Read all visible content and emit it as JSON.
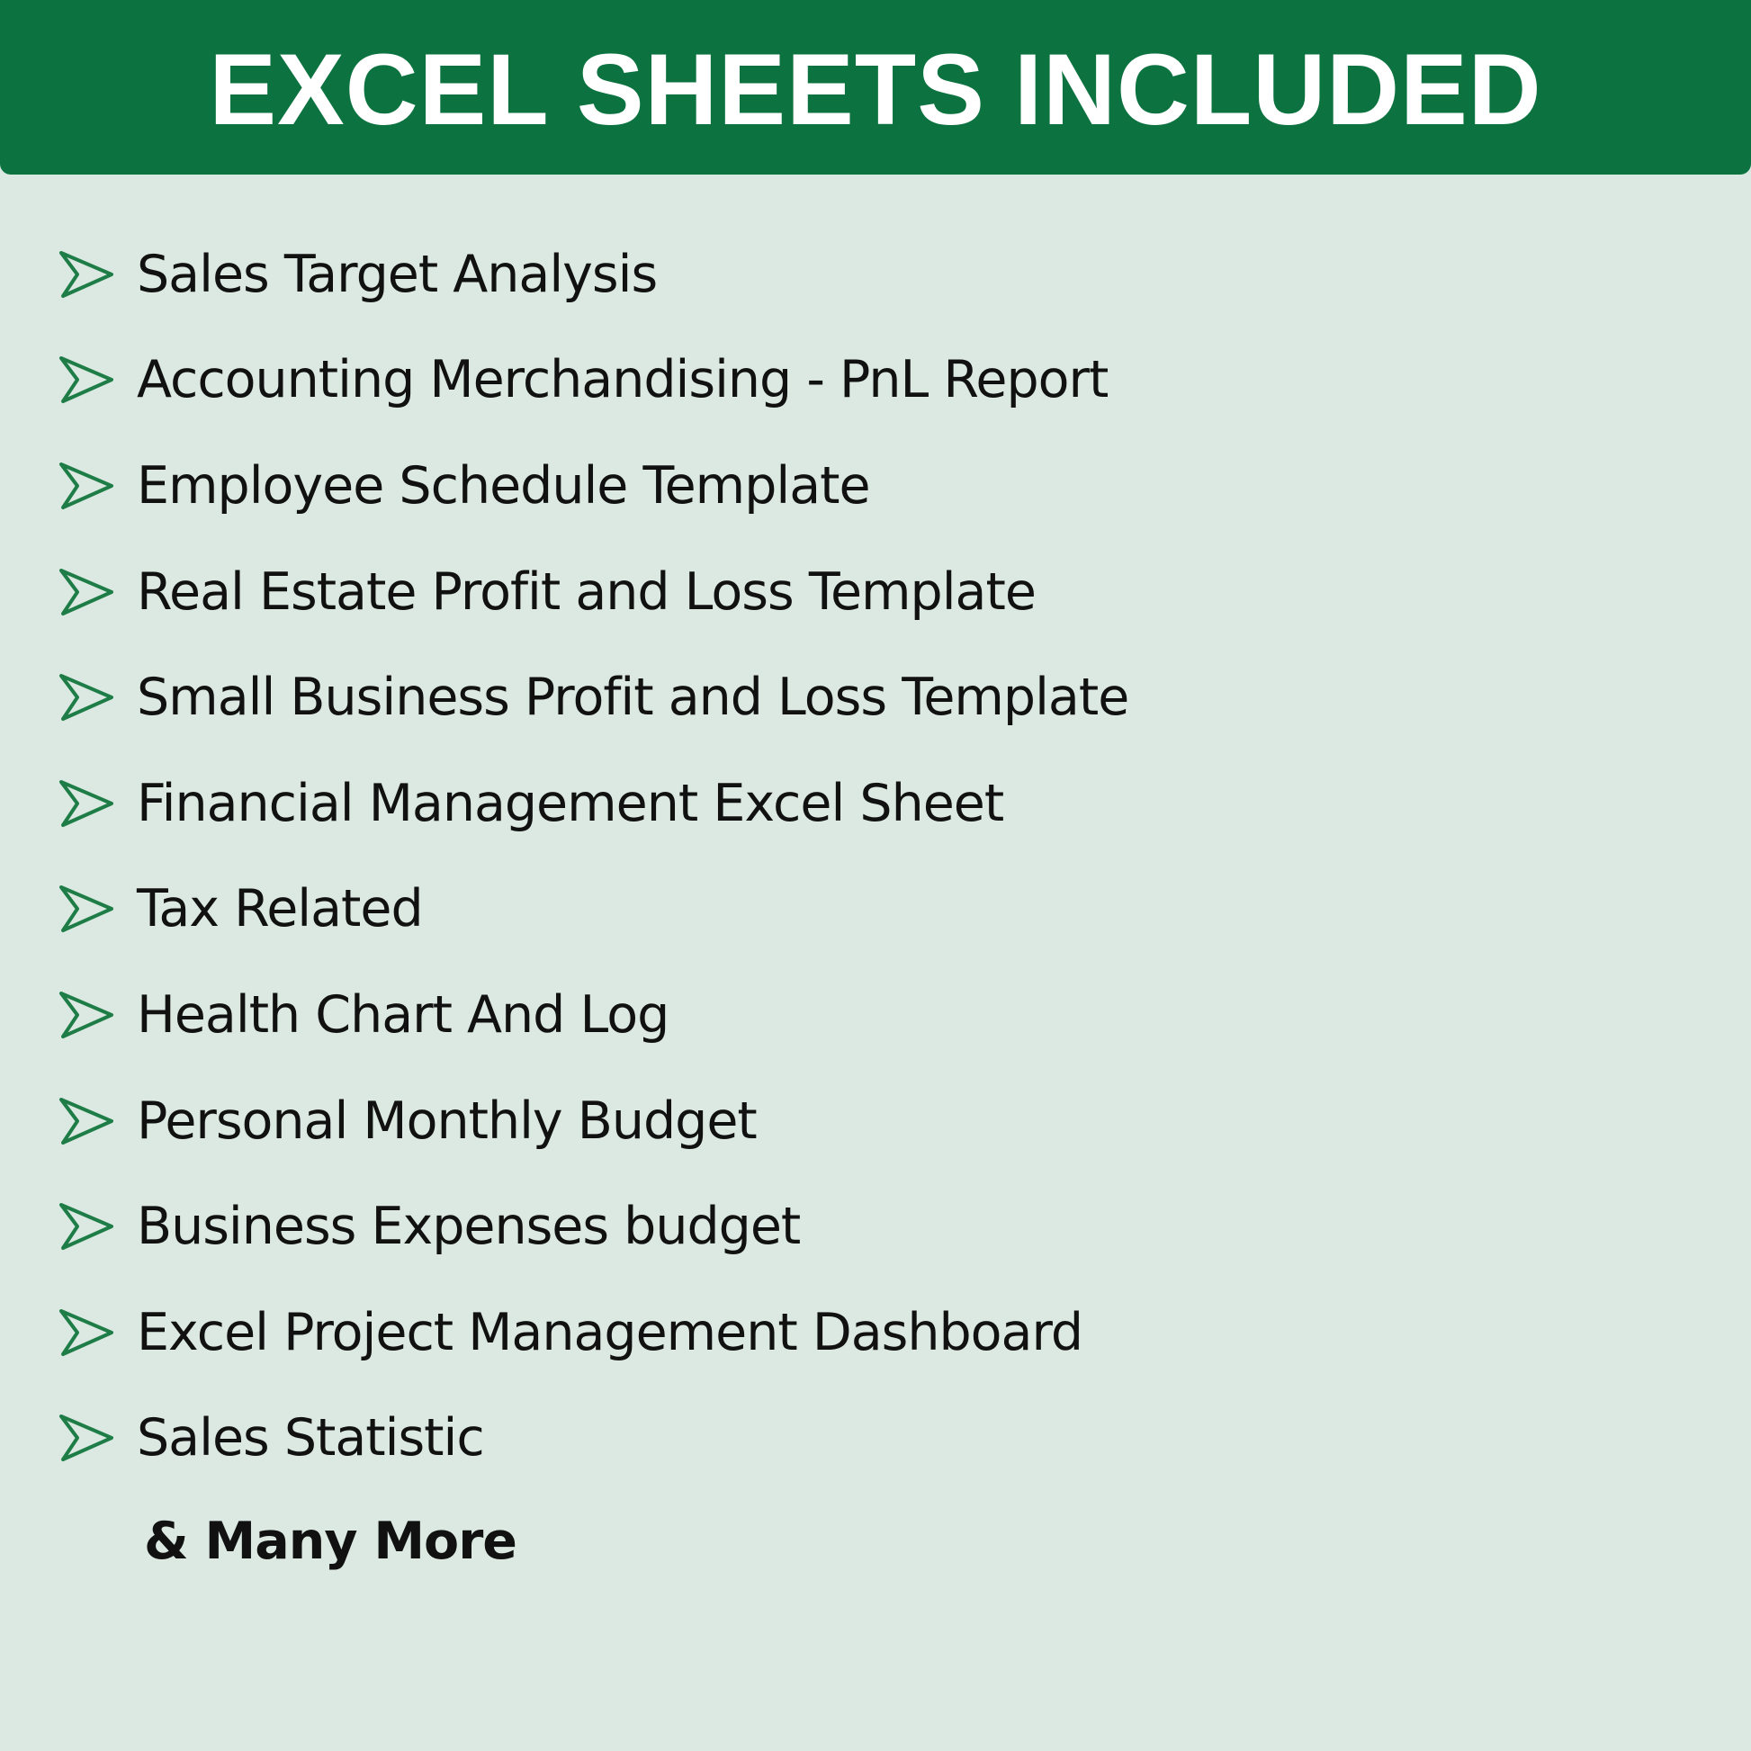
{
  "header": {
    "title": "EXCEL SHEETS INCLUDED"
  },
  "colors": {
    "header_bg": "#0c7340",
    "page_bg": "#dbe9e2",
    "bullet": "#1e7d47"
  },
  "bullet_icon": "outline-arrowhead-right",
  "items": [
    "Sales Target Analysis",
    "Accounting Merchandising - PnL Report",
    "Employee Schedule Template",
    "Real Estate Profit and Loss Template",
    "Small Business Profit and Loss Template",
    "Financial Management Excel Sheet",
    "Tax Related",
    "Health Chart And Log",
    "Personal Monthly Budget",
    "Business Expenses budget",
    "Excel Project Management Dashboard",
    "Sales Statistic"
  ],
  "footer": {
    "more": "& Many More"
  }
}
